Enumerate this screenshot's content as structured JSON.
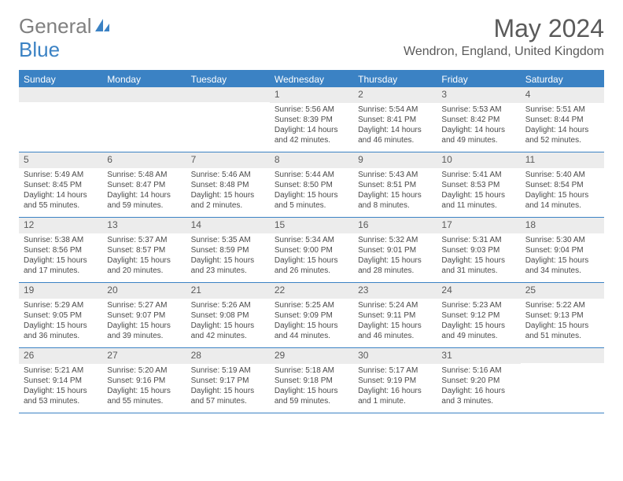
{
  "logo": {
    "text1": "General",
    "text2": "Blue"
  },
  "title": "May 2024",
  "location": "Wendron, England, United Kingdom",
  "day_headers": [
    "Sunday",
    "Monday",
    "Tuesday",
    "Wednesday",
    "Thursday",
    "Friday",
    "Saturday"
  ],
  "header_bg": "#3b82c4",
  "header_text_color": "#ffffff",
  "daynum_bg": "#ececec",
  "weeks": [
    [
      {
        "n": "",
        "lines": []
      },
      {
        "n": "",
        "lines": []
      },
      {
        "n": "",
        "lines": []
      },
      {
        "n": "1",
        "lines": [
          "Sunrise: 5:56 AM",
          "Sunset: 8:39 PM",
          "Daylight: 14 hours",
          "and 42 minutes."
        ]
      },
      {
        "n": "2",
        "lines": [
          "Sunrise: 5:54 AM",
          "Sunset: 8:41 PM",
          "Daylight: 14 hours",
          "and 46 minutes."
        ]
      },
      {
        "n": "3",
        "lines": [
          "Sunrise: 5:53 AM",
          "Sunset: 8:42 PM",
          "Daylight: 14 hours",
          "and 49 minutes."
        ]
      },
      {
        "n": "4",
        "lines": [
          "Sunrise: 5:51 AM",
          "Sunset: 8:44 PM",
          "Daylight: 14 hours",
          "and 52 minutes."
        ]
      }
    ],
    [
      {
        "n": "5",
        "lines": [
          "Sunrise: 5:49 AM",
          "Sunset: 8:45 PM",
          "Daylight: 14 hours",
          "and 55 minutes."
        ]
      },
      {
        "n": "6",
        "lines": [
          "Sunrise: 5:48 AM",
          "Sunset: 8:47 PM",
          "Daylight: 14 hours",
          "and 59 minutes."
        ]
      },
      {
        "n": "7",
        "lines": [
          "Sunrise: 5:46 AM",
          "Sunset: 8:48 PM",
          "Daylight: 15 hours",
          "and 2 minutes."
        ]
      },
      {
        "n": "8",
        "lines": [
          "Sunrise: 5:44 AM",
          "Sunset: 8:50 PM",
          "Daylight: 15 hours",
          "and 5 minutes."
        ]
      },
      {
        "n": "9",
        "lines": [
          "Sunrise: 5:43 AM",
          "Sunset: 8:51 PM",
          "Daylight: 15 hours",
          "and 8 minutes."
        ]
      },
      {
        "n": "10",
        "lines": [
          "Sunrise: 5:41 AM",
          "Sunset: 8:53 PM",
          "Daylight: 15 hours",
          "and 11 minutes."
        ]
      },
      {
        "n": "11",
        "lines": [
          "Sunrise: 5:40 AM",
          "Sunset: 8:54 PM",
          "Daylight: 15 hours",
          "and 14 minutes."
        ]
      }
    ],
    [
      {
        "n": "12",
        "lines": [
          "Sunrise: 5:38 AM",
          "Sunset: 8:56 PM",
          "Daylight: 15 hours",
          "and 17 minutes."
        ]
      },
      {
        "n": "13",
        "lines": [
          "Sunrise: 5:37 AM",
          "Sunset: 8:57 PM",
          "Daylight: 15 hours",
          "and 20 minutes."
        ]
      },
      {
        "n": "14",
        "lines": [
          "Sunrise: 5:35 AM",
          "Sunset: 8:59 PM",
          "Daylight: 15 hours",
          "and 23 minutes."
        ]
      },
      {
        "n": "15",
        "lines": [
          "Sunrise: 5:34 AM",
          "Sunset: 9:00 PM",
          "Daylight: 15 hours",
          "and 26 minutes."
        ]
      },
      {
        "n": "16",
        "lines": [
          "Sunrise: 5:32 AM",
          "Sunset: 9:01 PM",
          "Daylight: 15 hours",
          "and 28 minutes."
        ]
      },
      {
        "n": "17",
        "lines": [
          "Sunrise: 5:31 AM",
          "Sunset: 9:03 PM",
          "Daylight: 15 hours",
          "and 31 minutes."
        ]
      },
      {
        "n": "18",
        "lines": [
          "Sunrise: 5:30 AM",
          "Sunset: 9:04 PM",
          "Daylight: 15 hours",
          "and 34 minutes."
        ]
      }
    ],
    [
      {
        "n": "19",
        "lines": [
          "Sunrise: 5:29 AM",
          "Sunset: 9:05 PM",
          "Daylight: 15 hours",
          "and 36 minutes."
        ]
      },
      {
        "n": "20",
        "lines": [
          "Sunrise: 5:27 AM",
          "Sunset: 9:07 PM",
          "Daylight: 15 hours",
          "and 39 minutes."
        ]
      },
      {
        "n": "21",
        "lines": [
          "Sunrise: 5:26 AM",
          "Sunset: 9:08 PM",
          "Daylight: 15 hours",
          "and 42 minutes."
        ]
      },
      {
        "n": "22",
        "lines": [
          "Sunrise: 5:25 AM",
          "Sunset: 9:09 PM",
          "Daylight: 15 hours",
          "and 44 minutes."
        ]
      },
      {
        "n": "23",
        "lines": [
          "Sunrise: 5:24 AM",
          "Sunset: 9:11 PM",
          "Daylight: 15 hours",
          "and 46 minutes."
        ]
      },
      {
        "n": "24",
        "lines": [
          "Sunrise: 5:23 AM",
          "Sunset: 9:12 PM",
          "Daylight: 15 hours",
          "and 49 minutes."
        ]
      },
      {
        "n": "25",
        "lines": [
          "Sunrise: 5:22 AM",
          "Sunset: 9:13 PM",
          "Daylight: 15 hours",
          "and 51 minutes."
        ]
      }
    ],
    [
      {
        "n": "26",
        "lines": [
          "Sunrise: 5:21 AM",
          "Sunset: 9:14 PM",
          "Daylight: 15 hours",
          "and 53 minutes."
        ]
      },
      {
        "n": "27",
        "lines": [
          "Sunrise: 5:20 AM",
          "Sunset: 9:16 PM",
          "Daylight: 15 hours",
          "and 55 minutes."
        ]
      },
      {
        "n": "28",
        "lines": [
          "Sunrise: 5:19 AM",
          "Sunset: 9:17 PM",
          "Daylight: 15 hours",
          "and 57 minutes."
        ]
      },
      {
        "n": "29",
        "lines": [
          "Sunrise: 5:18 AM",
          "Sunset: 9:18 PM",
          "Daylight: 15 hours",
          "and 59 minutes."
        ]
      },
      {
        "n": "30",
        "lines": [
          "Sunrise: 5:17 AM",
          "Sunset: 9:19 PM",
          "Daylight: 16 hours",
          "and 1 minute."
        ]
      },
      {
        "n": "31",
        "lines": [
          "Sunrise: 5:16 AM",
          "Sunset: 9:20 PM",
          "Daylight: 16 hours",
          "and 3 minutes."
        ]
      },
      {
        "n": "",
        "lines": []
      }
    ]
  ]
}
